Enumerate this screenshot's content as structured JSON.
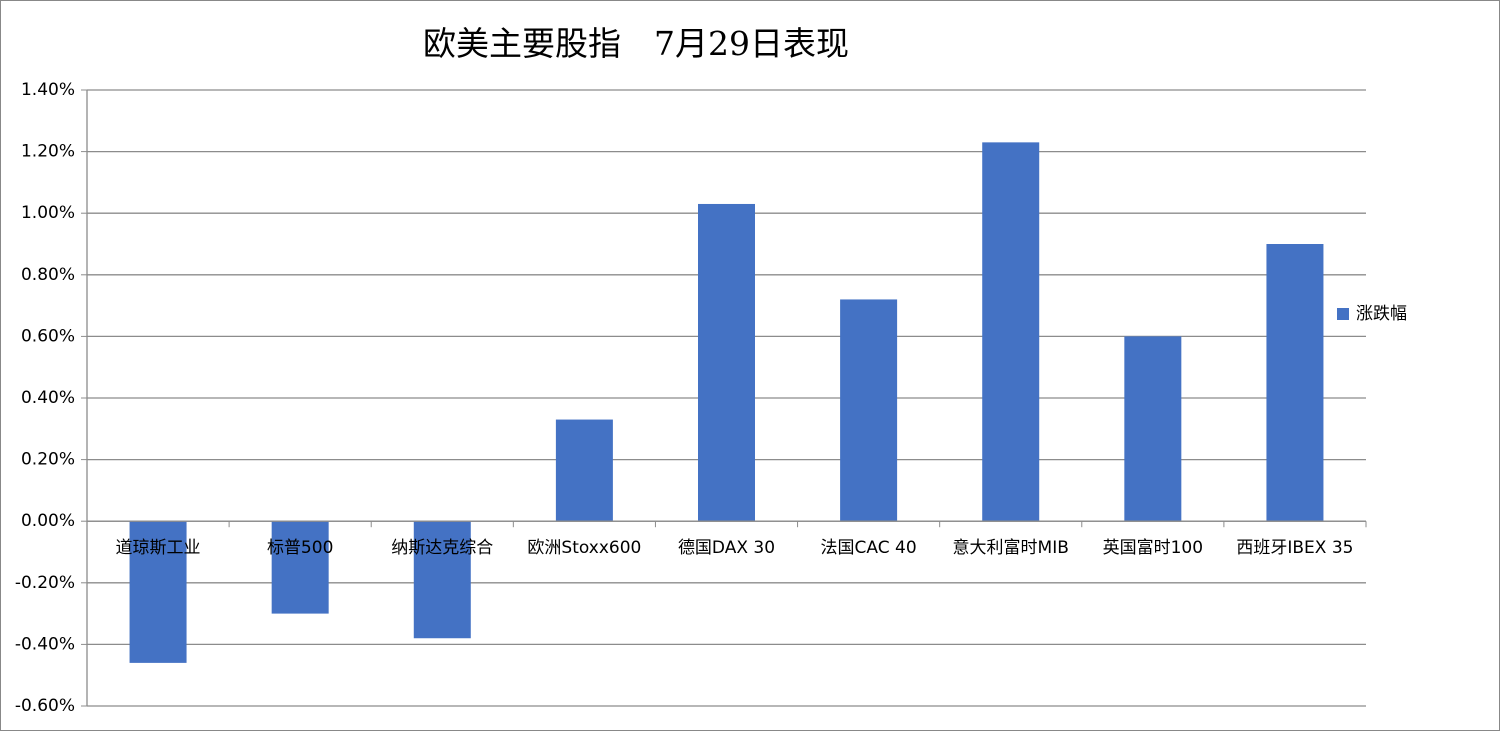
{
  "chart_data": {
    "type": "bar",
    "title": "欧美主要股指　7月29日表现",
    "categories": [
      "道琼斯工业",
      "标普500",
      "纳斯达克综合",
      "欧洲Stoxx600",
      "德国DAX 30",
      "法国CAC 40",
      "意大利富时MIB",
      "英国富时100",
      "西班牙IBEX 35"
    ],
    "series": [
      {
        "name": "涨跌幅",
        "color": "#4472c4",
        "values": [
          -0.46,
          -0.3,
          -0.38,
          0.33,
          1.03,
          0.72,
          1.23,
          0.6,
          0.9
        ]
      }
    ],
    "ylim": [
      -0.6,
      1.4
    ],
    "yticks": [
      {
        "value": -0.6,
        "label": "-0.60%"
      },
      {
        "value": -0.4,
        "label": "-0.40%"
      },
      {
        "value": -0.2,
        "label": "-0.20%"
      },
      {
        "value": 0,
        "label": "0.00%"
      },
      {
        "value": 0.2,
        "label": "0.20%"
      },
      {
        "value": 0.4,
        "label": "0.40%"
      },
      {
        "value": 0.6,
        "label": "0.60%"
      },
      {
        "value": 0.8,
        "label": "0.80%"
      },
      {
        "value": 1.0,
        "label": "1.00%"
      },
      {
        "value": 1.2,
        "label": "1.20%"
      },
      {
        "value": 1.4,
        "label": "1.40%"
      }
    ],
    "grid": true,
    "legend": "right"
  }
}
